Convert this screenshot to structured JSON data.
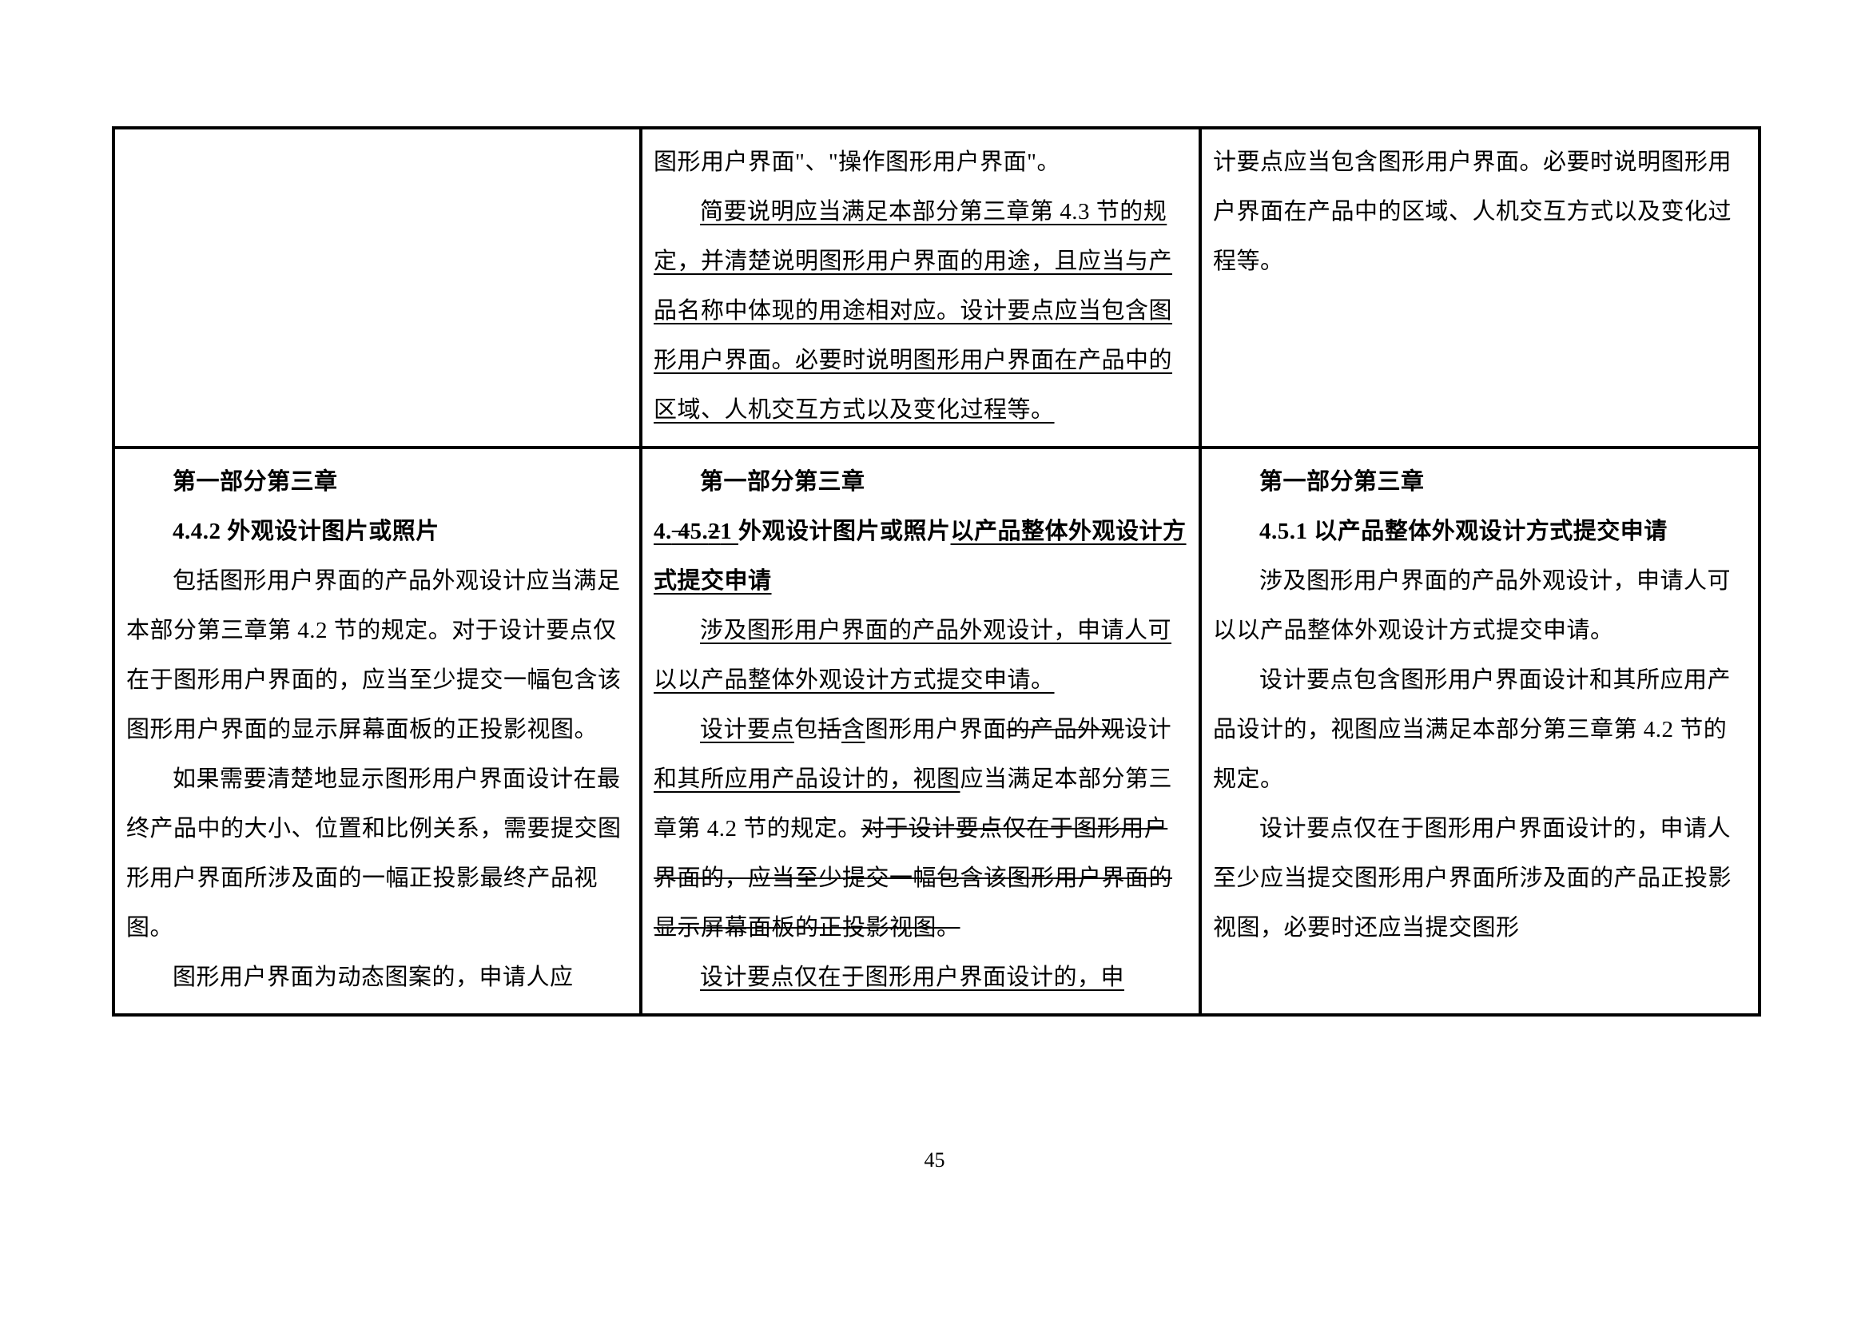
{
  "page_number": "45",
  "row1": {
    "col2": {
      "p1_a": "图形用户界面\"、\"操作图形用户界面\"。",
      "p2_u": "简要说明应当满足本部分第三章第 4.3 节的规定，并清楚说明图形用户界面的用途，且应当与产品名称中体现的用途相对应。设计要点应当包含图形用户界面。必要时说明图形用户界面在产品中的区域、人机交互方式以及变化过程等。"
    },
    "col3": {
      "p1": "计要点应当包含图形用户界面。必要时说明图形用户界面在产品中的区域、人机交互方式以及变化过程等。"
    }
  },
  "row2": {
    "col1": {
      "h1": "第一部分第三章",
      "h2": "4.4.2  外观设计图片或照片",
      "p1": "包括图形用户界面的产品外观设计应当满足本部分第三章第 4.2 节的规定。对于设计要点仅在于图形用户界面的，应当至少提交一幅包含该图形用户界面的显示屏幕面板的正投影视图。",
      "p2": "如果需要清楚地显示图形用户界面设计在最终产品中的大小、位置和比例关系，需要提交图形用户界面所涉及面的一幅正投影最终产品视图。",
      "p3": "图形用户界面为动态图案的，申请人应"
    },
    "col2": {
      "h1": "第一部分第三章",
      "h2_a": "4.",
      "h2_s1": " 4",
      "h2_u1": "5.",
      "h2_s2": "2",
      "h2_u2": "1 ",
      "h2_b": "外观设计图片或照片",
      "h2_u3": "以产品整体外观设计方式提交申请",
      "p1_u": "涉及图形用户界面的产品外观设计，申请人可以以产品整体外观设计方式提交申请。",
      "p2_a_u": "设计要点",
      "p2_b": "包",
      "p2_c_s": "括",
      "p2_d_u": "含",
      "p2_e": "图形用户界面",
      "p2_f_s": "的产品外观",
      "p2_g": "设计",
      "p2_h_u": "和其所应用产品设计的，视图",
      "p2_i": "应当满足本部分第三章第 4.2 节的规定。",
      "p2_j_s": "对于设计要点仅在于图形用户界面的，应当至少提交一幅包含该图形用户界面的显示屏幕面板的正投影视图。",
      "p3_u": "设计要点仅在于图形用户界面设计的，申"
    },
    "col3": {
      "h1": "第一部分第三章",
      "h2": "4.5.1  以产品整体外观设计方式提交申请",
      "p1": "涉及图形用户界面的产品外观设计，申请人可以以产品整体外观设计方式提交申请。",
      "p2": "设计要点包含图形用户界面设计和其所应用产品设计的，视图应当满足本部分第三章第 4.2 节的规定。",
      "p3": "设计要点仅在于图形用户界面设计的，申请人至少应当提交图形用户界面所涉及面的产品正投影视图，必要时还应当提交图形"
    }
  }
}
